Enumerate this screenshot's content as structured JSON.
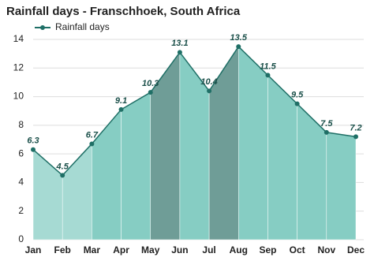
{
  "chart_data": {
    "type": "area",
    "title": "Rainfall days - Franschhoek, South Africa",
    "categories": [
      "Jan",
      "Feb",
      "Mar",
      "Apr",
      "May",
      "Jun",
      "Jul",
      "Aug",
      "Sep",
      "Oct",
      "Nov",
      "Dec"
    ],
    "series": [
      {
        "name": "Rainfall days",
        "color": "#1f6f66",
        "values": [
          6.3,
          4.5,
          6.7,
          9.1,
          10.3,
          13.1,
          10.4,
          13.5,
          11.5,
          9.5,
          7.5,
          7.2
        ]
      }
    ],
    "band_colors": [
      "#a6dad3",
      "#a6dad3",
      "#86cdc3",
      "#86cdc3",
      "#6f9d97",
      "#86cdc3",
      "#6f9d97",
      "#86cdc3",
      "#86cdc3",
      "#86cdc3",
      "#86cdc3"
    ],
    "ylim": [
      0,
      14
    ],
    "yticks": [
      0,
      2,
      4,
      6,
      8,
      10,
      12,
      14
    ],
    "grid": true,
    "legend": "top-left"
  }
}
